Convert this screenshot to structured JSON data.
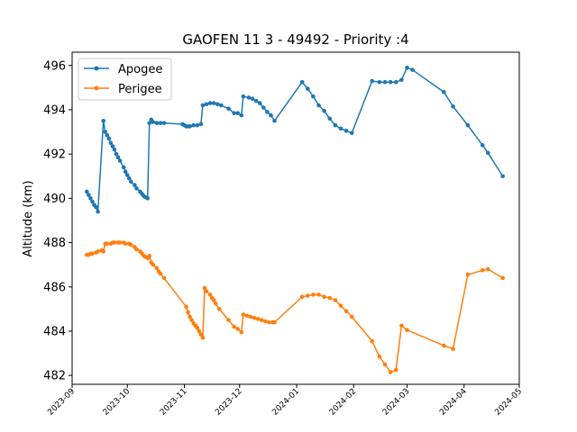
{
  "chart_data": {
    "type": "line",
    "title": "GAOFEN 11 3 - 49492 - Priority :4",
    "xlabel": "",
    "ylabel": "Altitude (km)",
    "ylim": [
      481.6,
      496.6
    ],
    "xlim": [
      "2023-09-01",
      "2024-05-01"
    ],
    "yticks": [
      482,
      484,
      486,
      488,
      490,
      492,
      494,
      496
    ],
    "xticks": [
      "2023-09",
      "2023-10",
      "2023-11",
      "2023-12",
      "2024-01",
      "2024-02",
      "2024-03",
      "2024-04",
      "2024-05"
    ],
    "grid": false,
    "legend": "top-left",
    "series": [
      {
        "name": "Apogee",
        "color": "#1f77b4",
        "points": [
          [
            "2023-09-09",
            490.3
          ],
          [
            "2023-09-10",
            490.15
          ],
          [
            "2023-09-11",
            490.0
          ],
          [
            "2023-09-12",
            489.85
          ],
          [
            "2023-09-13",
            489.7
          ],
          [
            "2023-09-14",
            489.6
          ],
          [
            "2023-09-15",
            489.4
          ],
          [
            "2023-09-18",
            493.5
          ],
          [
            "2023-09-19",
            493.0
          ],
          [
            "2023-09-20",
            492.85
          ],
          [
            "2023-09-21",
            492.7
          ],
          [
            "2023-09-22",
            492.5
          ],
          [
            "2023-09-23",
            492.35
          ],
          [
            "2023-09-24",
            492.2
          ],
          [
            "2023-09-25",
            492.0
          ],
          [
            "2023-09-26",
            491.85
          ],
          [
            "2023-09-27",
            491.7
          ],
          [
            "2023-09-29",
            491.4
          ],
          [
            "2023-09-30",
            491.2
          ],
          [
            "2023-10-01",
            491.05
          ],
          [
            "2023-10-02",
            490.9
          ],
          [
            "2023-10-03",
            490.75
          ],
          [
            "2023-10-05",
            490.6
          ],
          [
            "2023-10-06",
            490.45
          ],
          [
            "2023-10-08",
            490.3
          ],
          [
            "2023-10-09",
            490.2
          ],
          [
            "2023-10-10",
            490.1
          ],
          [
            "2023-10-11",
            490.05
          ],
          [
            "2023-10-12",
            490.0
          ],
          [
            "2023-10-13",
            493.4
          ],
          [
            "2023-10-14",
            493.55
          ],
          [
            "2023-10-15",
            493.45
          ],
          [
            "2023-10-17",
            493.4
          ],
          [
            "2023-10-19",
            493.4
          ],
          [
            "2023-10-21",
            493.4
          ],
          [
            "2023-10-31",
            493.35
          ],
          [
            "2023-11-01",
            493.3
          ],
          [
            "2023-11-02",
            493.25
          ],
          [
            "2023-11-03",
            493.25
          ],
          [
            "2023-11-04",
            493.25
          ],
          [
            "2023-11-06",
            493.3
          ],
          [
            "2023-11-08",
            493.3
          ],
          [
            "2023-11-10",
            493.35
          ],
          [
            "2023-11-11",
            494.2
          ],
          [
            "2023-11-13",
            494.25
          ],
          [
            "2023-11-15",
            494.3
          ],
          [
            "2023-11-17",
            494.3
          ],
          [
            "2023-11-19",
            494.25
          ],
          [
            "2023-11-21",
            494.2
          ],
          [
            "2023-11-25",
            494.05
          ],
          [
            "2023-11-28",
            493.85
          ],
          [
            "2023-11-30",
            493.85
          ],
          [
            "2023-12-02",
            493.75
          ],
          [
            "2023-12-03",
            494.6
          ],
          [
            "2023-12-06",
            494.55
          ],
          [
            "2023-12-08",
            494.5
          ],
          [
            "2023-12-10",
            494.4
          ],
          [
            "2023-12-12",
            494.3
          ],
          [
            "2023-12-14",
            494.1
          ],
          [
            "2023-12-16",
            493.9
          ],
          [
            "2023-12-18",
            493.75
          ],
          [
            "2023-12-20",
            493.5
          ],
          [
            "2024-01-04",
            495.25
          ],
          [
            "2024-01-07",
            494.95
          ],
          [
            "2024-01-10",
            494.6
          ],
          [
            "2024-01-13",
            494.2
          ],
          [
            "2024-01-16",
            493.95
          ],
          [
            "2024-01-19",
            493.6
          ],
          [
            "2024-01-22",
            493.3
          ],
          [
            "2024-01-25",
            493.15
          ],
          [
            "2024-01-28",
            493.05
          ],
          [
            "2024-01-31",
            492.95
          ],
          [
            "2024-02-11",
            495.3
          ],
          [
            "2024-02-15",
            495.25
          ],
          [
            "2024-02-18",
            495.25
          ],
          [
            "2024-02-21",
            495.25
          ],
          [
            "2024-02-24",
            495.25
          ],
          [
            "2024-02-27",
            495.35
          ],
          [
            "2024-03-01",
            495.9
          ],
          [
            "2024-03-04",
            495.8
          ],
          [
            "2024-03-21",
            494.8
          ],
          [
            "2024-03-26",
            494.15
          ],
          [
            "2024-04-03",
            493.3
          ],
          [
            "2024-04-11",
            492.4
          ],
          [
            "2024-04-14",
            492.05
          ],
          [
            "2024-04-22",
            491.0
          ]
        ]
      },
      {
        "name": "Perigee",
        "color": "#ff7f0e",
        "points": [
          [
            "2023-09-09",
            487.45
          ],
          [
            "2023-09-10",
            487.45
          ],
          [
            "2023-09-11",
            487.5
          ],
          [
            "2023-09-12",
            487.5
          ],
          [
            "2023-09-14",
            487.55
          ],
          [
            "2023-09-15",
            487.6
          ],
          [
            "2023-09-17",
            487.65
          ],
          [
            "2023-09-18",
            487.6
          ],
          [
            "2023-09-19",
            487.95
          ],
          [
            "2023-09-20",
            487.95
          ],
          [
            "2023-09-22",
            487.95
          ],
          [
            "2023-09-23",
            488.0
          ],
          [
            "2023-09-24",
            488.0
          ],
          [
            "2023-09-26",
            488.0
          ],
          [
            "2023-09-27",
            488.0
          ],
          [
            "2023-09-29",
            488.0
          ],
          [
            "2023-09-30",
            487.95
          ],
          [
            "2023-10-02",
            487.95
          ],
          [
            "2023-10-03",
            487.9
          ],
          [
            "2023-10-05",
            487.8
          ],
          [
            "2023-10-06",
            487.7
          ],
          [
            "2023-10-08",
            487.6
          ],
          [
            "2023-10-09",
            487.5
          ],
          [
            "2023-10-10",
            487.4
          ],
          [
            "2023-10-11",
            487.35
          ],
          [
            "2023-10-12",
            487.3
          ],
          [
            "2023-10-13",
            487.4
          ],
          [
            "2023-10-14",
            487.1
          ],
          [
            "2023-10-15",
            487.0
          ],
          [
            "2023-10-17",
            486.85
          ],
          [
            "2023-10-18",
            486.7
          ],
          [
            "2023-10-19",
            486.6
          ],
          [
            "2023-10-21",
            486.4
          ],
          [
            "2023-11-02",
            485.1
          ],
          [
            "2023-11-03",
            484.85
          ],
          [
            "2023-11-04",
            484.65
          ],
          [
            "2023-11-05",
            484.5
          ],
          [
            "2023-11-06",
            484.35
          ],
          [
            "2023-11-07",
            484.25
          ],
          [
            "2023-11-08",
            484.15
          ],
          [
            "2023-11-09",
            484.0
          ],
          [
            "2023-11-10",
            483.85
          ],
          [
            "2023-11-11",
            483.7
          ],
          [
            "2023-11-12",
            485.95
          ],
          [
            "2023-11-13",
            485.8
          ],
          [
            "2023-11-15",
            485.65
          ],
          [
            "2023-11-16",
            485.5
          ],
          [
            "2023-11-17",
            485.4
          ],
          [
            "2023-11-18",
            485.25
          ],
          [
            "2023-11-20",
            485.0
          ],
          [
            "2023-11-25",
            484.5
          ],
          [
            "2023-11-28",
            484.2
          ],
          [
            "2023-11-30",
            484.1
          ],
          [
            "2023-12-02",
            483.95
          ],
          [
            "2023-12-03",
            484.75
          ],
          [
            "2023-12-05",
            484.7
          ],
          [
            "2023-12-07",
            484.65
          ],
          [
            "2023-12-09",
            484.6
          ],
          [
            "2023-12-11",
            484.55
          ],
          [
            "2023-12-13",
            484.5
          ],
          [
            "2023-12-15",
            484.45
          ],
          [
            "2023-12-17",
            484.4
          ],
          [
            "2023-12-19",
            484.4
          ],
          [
            "2023-12-20",
            484.4
          ],
          [
            "2024-01-04",
            485.55
          ],
          [
            "2024-01-07",
            485.6
          ],
          [
            "2024-01-10",
            485.65
          ],
          [
            "2024-01-13",
            485.65
          ],
          [
            "2024-01-16",
            485.55
          ],
          [
            "2024-01-19",
            485.5
          ],
          [
            "2024-01-22",
            485.4
          ],
          [
            "2024-01-25",
            485.15
          ],
          [
            "2024-01-28",
            484.9
          ],
          [
            "2024-01-31",
            484.65
          ],
          [
            "2024-02-11",
            483.55
          ],
          [
            "2024-02-15",
            482.85
          ],
          [
            "2024-02-18",
            482.5
          ],
          [
            "2024-02-21",
            482.15
          ],
          [
            "2024-02-24",
            482.25
          ],
          [
            "2024-02-27",
            484.25
          ],
          [
            "2024-03-01",
            484.05
          ],
          [
            "2024-03-21",
            483.35
          ],
          [
            "2024-03-26",
            483.2
          ],
          [
            "2024-04-03",
            486.55
          ],
          [
            "2024-04-11",
            486.75
          ],
          [
            "2024-04-14",
            486.8
          ],
          [
            "2024-04-22",
            486.4
          ]
        ]
      }
    ]
  }
}
